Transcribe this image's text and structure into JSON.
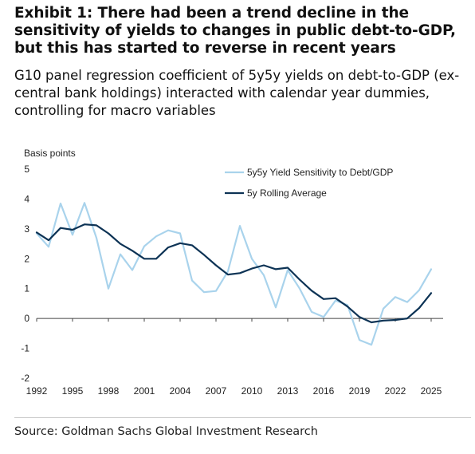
{
  "title": "Exhibit 1: There had been a trend decline in the sensitivity of yields to changes in public debt-to-GDP, but this has started to reverse in recent years",
  "subtitle": "G10 panel regression coefficient of 5y5y yields on debt-to-GDP (ex-central bank holdings) interacted with calendar year dummies, controlling for macro variables",
  "source": "Source: Goldman Sachs Global Investment Research",
  "chart_data": {
    "type": "line",
    "ylabel": "Basis points",
    "ylim": [
      -2,
      5
    ],
    "yticks": [
      -2,
      -1,
      0,
      1,
      2,
      3,
      4,
      5
    ],
    "xlim": [
      1992,
      2026
    ],
    "xticks": [
      1992,
      1995,
      1998,
      2001,
      2004,
      2007,
      2010,
      2013,
      2016,
      2019,
      2022,
      2025
    ],
    "grid": false,
    "legend_position": "top-right",
    "x": [
      1992,
      1993,
      1994,
      1995,
      1996,
      1997,
      1998,
      1999,
      2000,
      2001,
      2002,
      2003,
      2004,
      2005,
      2006,
      2007,
      2008,
      2009,
      2010,
      2011,
      2012,
      2013,
      2014,
      2015,
      2016,
      2017,
      2018,
      2019,
      2020,
      2021,
      2022,
      2023,
      2024,
      2025
    ],
    "series": [
      {
        "name": "5y5y Yield Sensitivity to Debt/GDP",
        "color": "#a9d3ec",
        "values": [
          2.85,
          2.4,
          3.85,
          2.8,
          3.87,
          2.7,
          1.0,
          2.15,
          1.62,
          2.42,
          2.75,
          2.95,
          2.85,
          1.27,
          0.88,
          0.92,
          1.58,
          3.1,
          2.0,
          1.45,
          0.37,
          1.62,
          1.0,
          0.22,
          0.05,
          0.6,
          0.45,
          -0.72,
          -0.88,
          0.33,
          0.72,
          0.55,
          0.95,
          1.65
        ]
      },
      {
        "name": "5y Rolling Average",
        "color": "#0d3355",
        "values": [
          2.88,
          2.62,
          3.03,
          2.97,
          3.15,
          3.12,
          2.85,
          2.5,
          2.27,
          2.0,
          2.0,
          2.38,
          2.52,
          2.45,
          2.13,
          1.78,
          1.47,
          1.52,
          1.67,
          1.78,
          1.65,
          1.7,
          1.3,
          0.93,
          0.65,
          0.68,
          0.4,
          0.05,
          -0.13,
          -0.07,
          -0.05,
          0.0,
          0.35,
          0.85
        ]
      }
    ]
  }
}
